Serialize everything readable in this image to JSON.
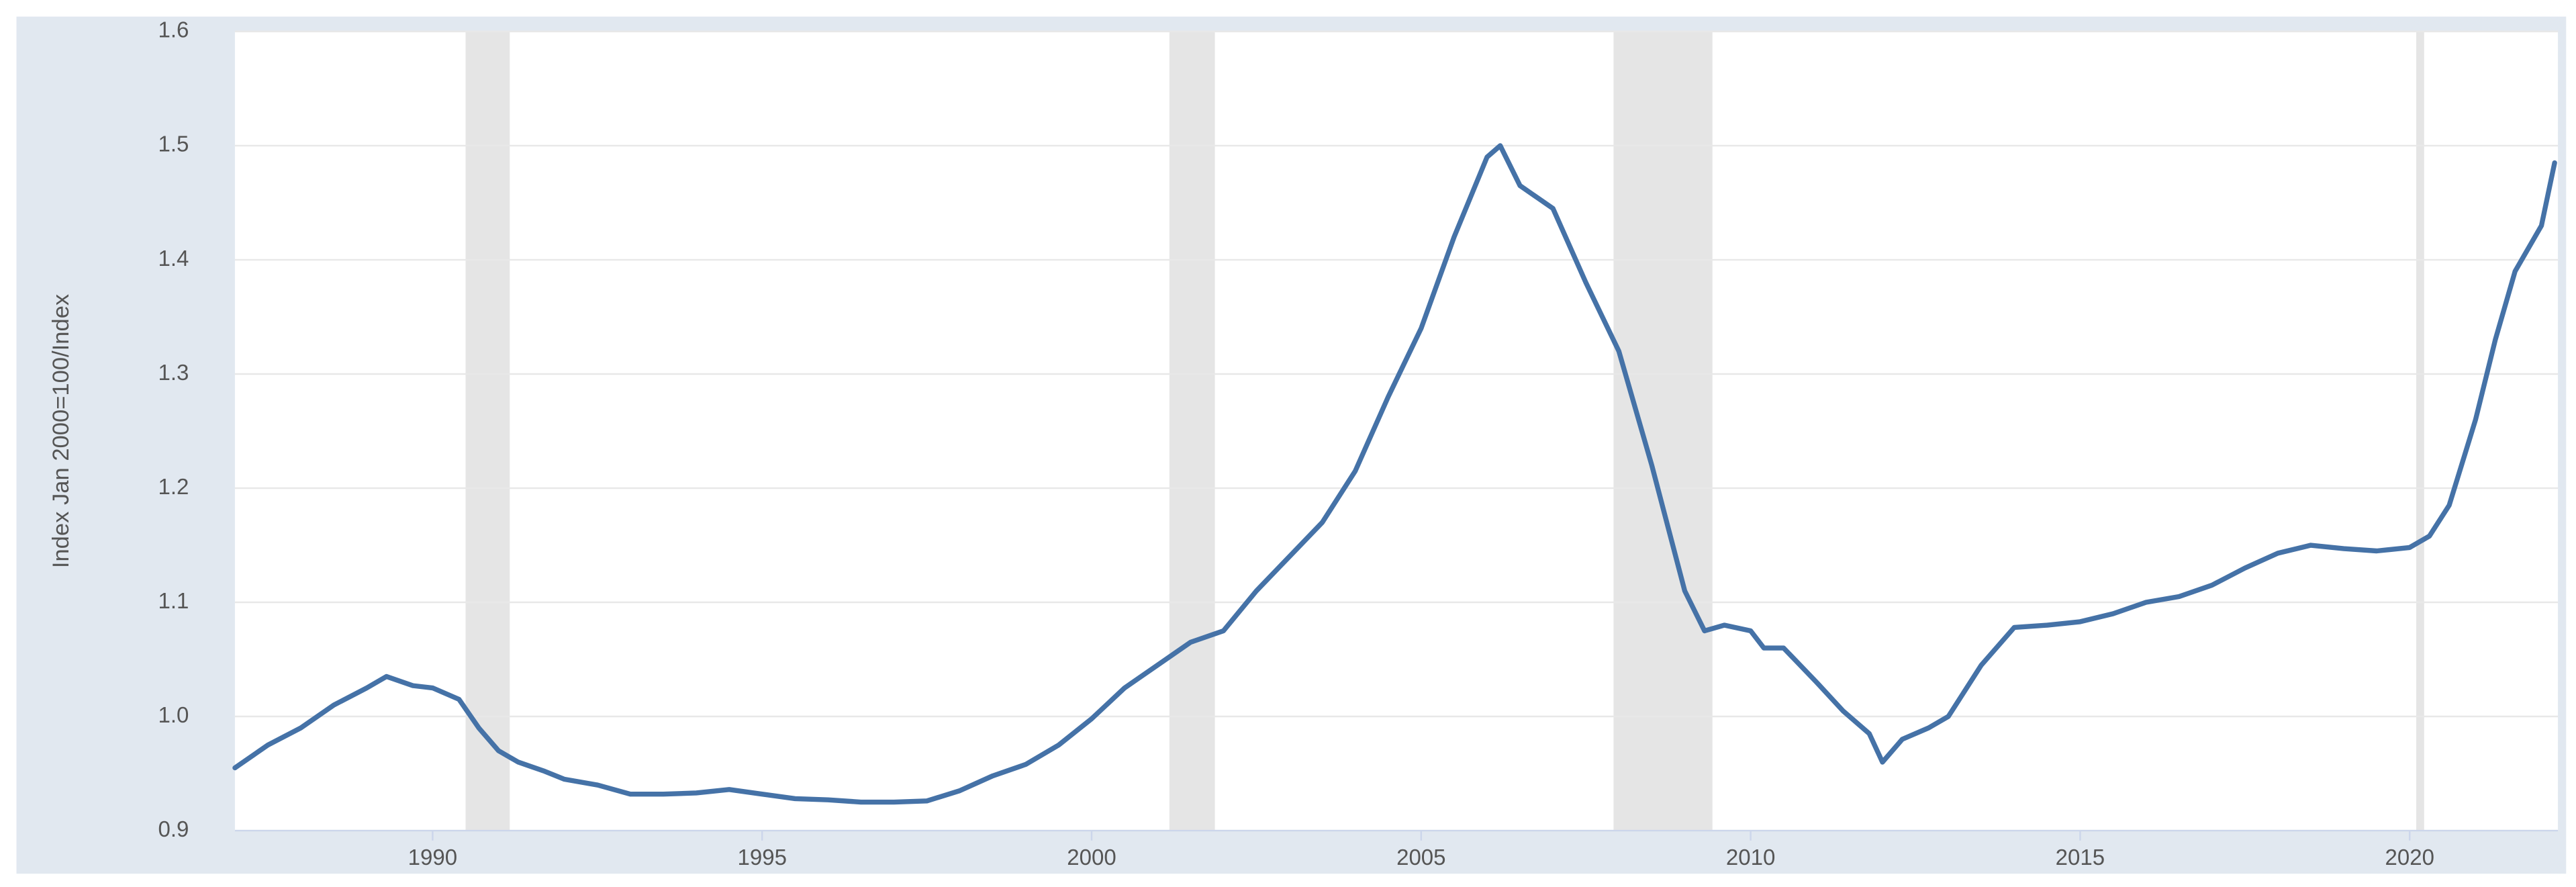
{
  "chart_data": {
    "type": "line",
    "y_label": "Index Jan 2000=100/Index",
    "color": "#4572a7",
    "grid": true,
    "xlim": [
      1987,
      2022.25
    ],
    "xticks": [
      1990,
      1995,
      2000,
      2005,
      2010,
      2015,
      2020
    ],
    "ylim": [
      0.9,
      1.6
    ],
    "yticks": [
      0.9,
      {
        "value": 1,
        "label": "1.0"
      },
      1.1,
      1.2,
      1.3,
      1.4,
      1.5,
      1.6
    ],
    "shaded_periods": [
      [
        1990.5,
        1991.17
      ],
      [
        2001.18,
        2001.87
      ],
      [
        2007.92,
        2009.42
      ],
      [
        2020.1,
        2020.22
      ]
    ],
    "x": [
      1987.0,
      1987.5,
      1988.0,
      1988.5,
      1989.0,
      1989.3,
      1989.7,
      1990.0,
      1990.4,
      1990.7,
      1991.0,
      1991.3,
      1991.7,
      1992.0,
      1992.5,
      1993.0,
      1993.5,
      1994.0,
      1994.5,
      1995.0,
      1995.5,
      1996.0,
      1996.5,
      1997.0,
      1997.5,
      1998.0,
      1998.5,
      1999.0,
      1999.5,
      2000.0,
      2000.5,
      2001.0,
      2001.5,
      2002.0,
      2002.5,
      2003.0,
      2003.5,
      2004.0,
      2004.5,
      2005.0,
      2005.5,
      2006.0,
      2006.2,
      2006.5,
      2007.0,
      2007.5,
      2008.0,
      2008.5,
      2009.0,
      2009.3,
      2009.6,
      2010.0,
      2010.2,
      2010.5,
      2011.0,
      2011.4,
      2011.8,
      2012.0,
      2012.3,
      2012.7,
      2013.0,
      2013.5,
      2014.0,
      2014.5,
      2015.0,
      2015.5,
      2016.0,
      2016.5,
      2017.0,
      2017.5,
      2018.0,
      2018.5,
      2019.0,
      2019.5,
      2020.0,
      2020.3,
      2020.6,
      2021.0,
      2021.3,
      2021.6,
      2022.0,
      2022.2
    ],
    "values": [
      0.955,
      0.975,
      0.99,
      1.01,
      1.025,
      1.035,
      1.027,
      1.025,
      1.015,
      0.99,
      0.97,
      0.96,
      0.952,
      0.945,
      0.94,
      0.932,
      0.932,
      0.933,
      0.936,
      0.932,
      0.928,
      0.927,
      0.925,
      0.925,
      0.926,
      0.935,
      0.948,
      0.958,
      0.975,
      0.998,
      1.025,
      1.045,
      1.065,
      1.075,
      1.11,
      1.14,
      1.17,
      1.215,
      1.28,
      1.34,
      1.42,
      1.49,
      1.5,
      1.465,
      1.445,
      1.38,
      1.32,
      1.22,
      1.11,
      1.075,
      1.08,
      1.075,
      1.06,
      1.06,
      1.03,
      1.005,
      0.985,
      0.96,
      0.98,
      0.99,
      1.0,
      1.045,
      1.078,
      1.08,
      1.083,
      1.09,
      1.1,
      1.105,
      1.115,
      1.13,
      1.143,
      1.15,
      1.147,
      1.145,
      1.148,
      1.158,
      1.185,
      1.26,
      1.33,
      1.39,
      1.43,
      1.485
    ]
  }
}
